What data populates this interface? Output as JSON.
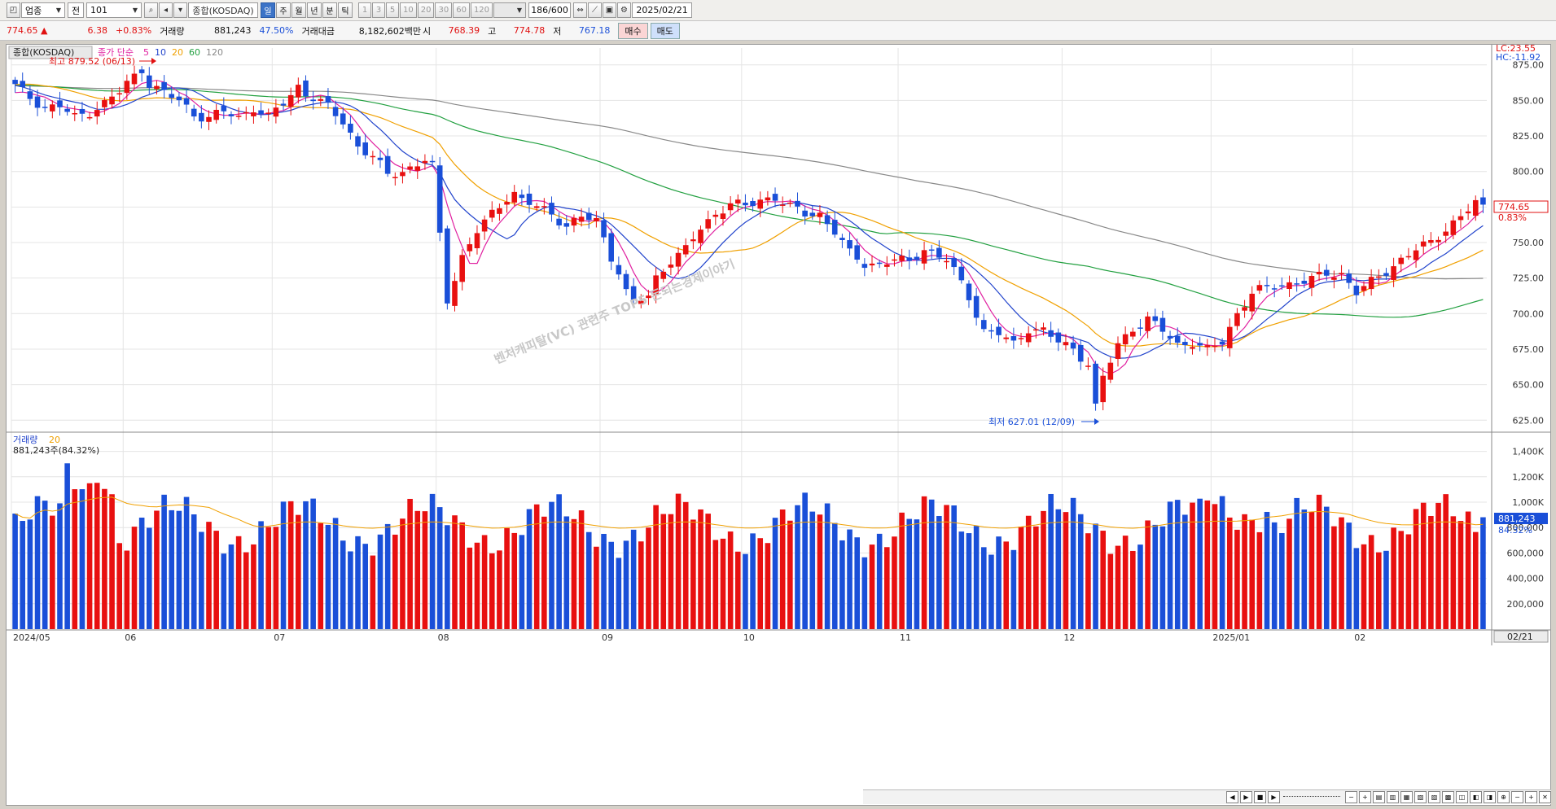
{
  "toolbar": {
    "market_select": "업종",
    "type_select": "전",
    "code_input": "101",
    "index_name": "종합(KOSDAQ)",
    "period_buttons": [
      "일",
      "주",
      "월",
      "년",
      "분",
      "틱"
    ],
    "active_period": "일",
    "minute_buttons": [
      "1",
      "3",
      "5",
      "10",
      "20",
      "30",
      "60",
      "120"
    ],
    "count_value": "186",
    "count_total": "/600",
    "date_value": "2025/02/21"
  },
  "quote": {
    "price": "774.65",
    "arrow": "▲",
    "change": "6.38",
    "change_pct": "+0.83%",
    "volume_label": "거래량",
    "volume": "881,243",
    "volume_ratio": "47.50%",
    "amount_label": "거래대금",
    "amount": "8,182,602백만",
    "open_label": "시",
    "open": "768.39",
    "high_label": "고",
    "high": "774.78",
    "low_label": "저",
    "low": "767.18",
    "buy_label": "매수",
    "sell_label": "매도"
  },
  "legend": {
    "index_name": "종합(KOSDAQ)",
    "ma_label": "종가 단순",
    "ma_periods": [
      "5",
      "10",
      "20",
      "60",
      "120"
    ],
    "ma_colors": [
      "#e020a0",
      "#2244cc",
      "#f0a000",
      "#22a040",
      "#888888"
    ],
    "volume_label": "거래량",
    "volume_ma": "20",
    "volume_info": "881,243주(84.32%)"
  },
  "annotations": {
    "high_marker": "최고 879.52 (06/13)",
    "low_marker": "최저 627.01 (12/09)",
    "lc": "LC:23.55",
    "hc": "HC:-11.92",
    "price_tag": "774.65",
    "price_pct_tag": "0.83%",
    "volume_tag": "881,243",
    "volume_pct_tag": "84.32%",
    "last_date_tag": "02/21",
    "watermark": "벤처캐피탈(VC) 관련주 TOP5 돈되는경제이야기"
  },
  "chart_data": {
    "type": "candlestick",
    "price_axis": {
      "min": 620,
      "max": 880,
      "ticks": [
        "875.00",
        "850.00",
        "825.00",
        "800.00",
        "775.00",
        "750.00",
        "725.00",
        "700.00",
        "675.00",
        "650.00",
        "625.00"
      ]
    },
    "volume_axis": {
      "min": 0,
      "max": 1500000,
      "ticks": [
        "1,400K",
        "1,200K",
        "1,000K",
        "800,000",
        "600,000",
        "400,000",
        "200,000"
      ]
    },
    "x_labels": [
      {
        "label": "2024/05",
        "index": 0
      },
      {
        "label": "06",
        "index": 15
      },
      {
        "label": "07",
        "index": 35
      },
      {
        "label": "08",
        "index": 57
      },
      {
        "label": "09",
        "index": 79
      },
      {
        "label": "10",
        "index": 98
      },
      {
        "label": "11",
        "index": 119
      },
      {
        "label": "12",
        "index": 141
      },
      {
        "label": "2025/01",
        "index": 161
      },
      {
        "label": "02",
        "index": 180
      }
    ],
    "anchors": [
      [
        0,
        860
      ],
      [
        2,
        852
      ],
      [
        4,
        845
      ],
      [
        6,
        846
      ],
      [
        8,
        838
      ],
      [
        10,
        842
      ],
      [
        12,
        848
      ],
      [
        14,
        856
      ],
      [
        15,
        862
      ],
      [
        17,
        872
      ],
      [
        18,
        862
      ],
      [
        20,
        855
      ],
      [
        22,
        850
      ],
      [
        24,
        840
      ],
      [
        26,
        838
      ],
      [
        28,
        842
      ],
      [
        30,
        838
      ],
      [
        32,
        845
      ],
      [
        34,
        838
      ],
      [
        36,
        848
      ],
      [
        38,
        860
      ],
      [
        39,
        855
      ],
      [
        40,
        852
      ],
      [
        42,
        845
      ],
      [
        44,
        835
      ],
      [
        46,
        818
      ],
      [
        48,
        810
      ],
      [
        50,
        798
      ],
      [
        52,
        800
      ],
      [
        55,
        808
      ],
      [
        56,
        803
      ],
      [
        57,
        755
      ],
      [
        58,
        710
      ],
      [
        59,
        725
      ],
      [
        60,
        740
      ],
      [
        62,
        758
      ],
      [
        64,
        770
      ],
      [
        66,
        782
      ],
      [
        67,
        785
      ],
      [
        68,
        780
      ],
      [
        70,
        775
      ],
      [
        72,
        770
      ],
      [
        74,
        762
      ],
      [
        76,
        768
      ],
      [
        78,
        765
      ],
      [
        80,
        740
      ],
      [
        81,
        730
      ],
      [
        82,
        715
      ],
      [
        83,
        708
      ],
      [
        85,
        712
      ],
      [
        86,
        725
      ],
      [
        88,
        738
      ],
      [
        90,
        745
      ],
      [
        92,
        760
      ],
      [
        94,
        770
      ],
      [
        96,
        778
      ],
      [
        98,
        775
      ],
      [
        100,
        780
      ],
      [
        102,
        782
      ],
      [
        104,
        775
      ],
      [
        106,
        770
      ],
      [
        108,
        770
      ],
      [
        110,
        758
      ],
      [
        112,
        742
      ],
      [
        114,
        735
      ],
      [
        116,
        735
      ],
      [
        118,
        738
      ],
      [
        120,
        736
      ],
      [
        122,
        746
      ],
      [
        124,
        740
      ],
      [
        125,
        738
      ],
      [
        126,
        730
      ],
      [
        128,
        712
      ],
      [
        130,
        688
      ],
      [
        132,
        686
      ],
      [
        134,
        678
      ],
      [
        136,
        690
      ],
      [
        138,
        688
      ],
      [
        140,
        680
      ],
      [
        142,
        675
      ],
      [
        144,
        665
      ],
      [
        145,
        634
      ],
      [
        146,
        655
      ],
      [
        148,
        678
      ],
      [
        150,
        690
      ],
      [
        152,
        696
      ],
      [
        154,
        688
      ],
      [
        156,
        678
      ],
      [
        158,
        680
      ],
      [
        160,
        674
      ],
      [
        162,
        680
      ],
      [
        164,
        700
      ],
      [
        166,
        715
      ],
      [
        168,
        718
      ],
      [
        170,
        720
      ],
      [
        172,
        722
      ],
      [
        174,
        724
      ],
      [
        176,
        728
      ],
      [
        178,
        728
      ],
      [
        180,
        715
      ],
      [
        182,
        722
      ],
      [
        184,
        730
      ],
      [
        186,
        738
      ],
      [
        188,
        745
      ],
      [
        190,
        750
      ],
      [
        192,
        760
      ],
      [
        194,
        768
      ],
      [
        196,
        778
      ],
      [
        197,
        774
      ]
    ],
    "volume_series": "daily volume bars, red=up day blue=down day"
  }
}
